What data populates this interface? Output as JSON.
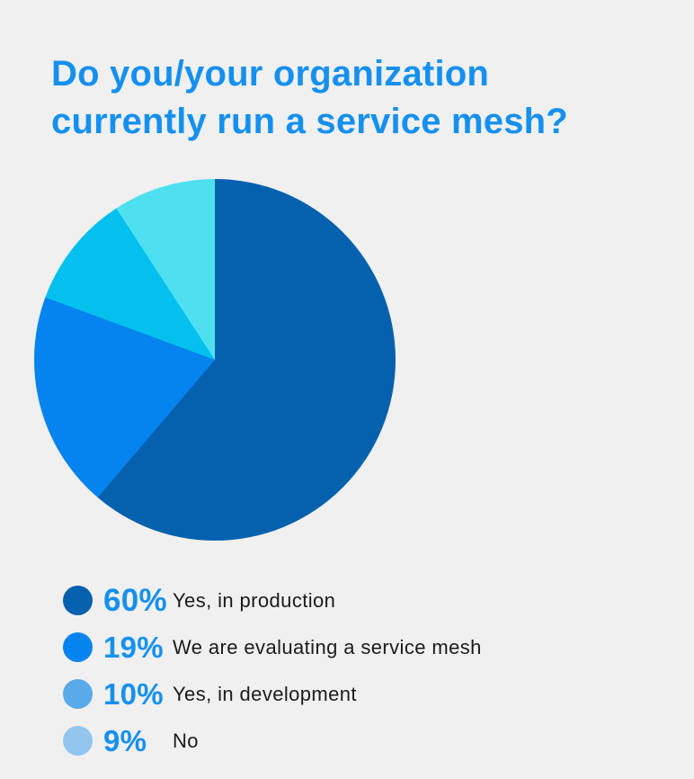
{
  "theme": {
    "background": "#f0f0f1",
    "accent_blue": "#1590f0",
    "label_text": "#1b1b1d"
  },
  "title": {
    "lines": [
      "Do you/your organization",
      "currently run a service mesh?"
    ]
  },
  "chart_data": {
    "type": "pie",
    "title": "Do you/your organization currently run a service mesh?",
    "start_angle_deg": 0,
    "direction": "clockwise",
    "legend_position": "bottom-left",
    "slices": [
      {
        "label": "Yes, in production",
        "value": 60,
        "pct_label": "60%",
        "pie_color": "#0561ae",
        "legend_color": "#0560ad"
      },
      {
        "label": "We are evaluating a service mesh",
        "value": 19,
        "pct_label": "19%",
        "pie_color": "#0583ee",
        "legend_color": "#0584f0"
      },
      {
        "label": "Yes, in development",
        "value": 10,
        "pct_label": "10%",
        "pie_color": "#04c0ef",
        "legend_color": "#5aa9e8"
      },
      {
        "label": "No",
        "value": 9,
        "pct_label": "9%",
        "pie_color": "#4fe0ef",
        "legend_color": "#92c5ee"
      }
    ]
  }
}
